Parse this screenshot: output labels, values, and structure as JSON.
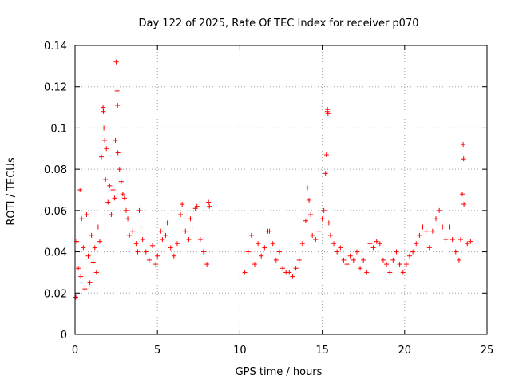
{
  "chart_data": {
    "type": "scatter",
    "title": "Day 122 of 2025, Rate Of TEC Index for receiver p070",
    "xlabel": "GPS time / hours",
    "ylabel": "ROTI / TECUs",
    "xlim": [
      0,
      25
    ],
    "ylim": [
      0,
      0.14
    ],
    "xticks": [
      0,
      5,
      10,
      15,
      20,
      25
    ],
    "xtick_labels": [
      "0",
      "5",
      "10",
      "15",
      "20",
      "25"
    ],
    "yticks": [
      0,
      0.02,
      0.04,
      0.06,
      0.08,
      0.1,
      0.12,
      0.14
    ],
    "ytick_labels": [
      "0",
      "0.02",
      "0.04",
      "0.06",
      "0.08",
      "0.1",
      "0.12",
      "0.14"
    ],
    "grid": true,
    "marker": "+",
    "color": "#ff0000",
    "data_gap_hours": [
      8.3,
      10.2
    ],
    "series": [
      {
        "name": "ROTI",
        "points": [
          [
            0.05,
            0.018
          ],
          [
            0.1,
            0.045
          ],
          [
            0.2,
            0.032
          ],
          [
            0.3,
            0.07
          ],
          [
            0.35,
            0.028
          ],
          [
            0.4,
            0.056
          ],
          [
            0.5,
            0.042
          ],
          [
            0.6,
            0.022
          ],
          [
            0.7,
            0.058
          ],
          [
            0.8,
            0.038
          ],
          [
            0.9,
            0.025
          ],
          [
            1.0,
            0.048
          ],
          [
            1.1,
            0.035
          ],
          [
            1.2,
            0.042
          ],
          [
            1.3,
            0.03
          ],
          [
            1.4,
            0.052
          ],
          [
            1.5,
            0.045
          ],
          [
            1.6,
            0.086
          ],
          [
            1.7,
            0.11
          ],
          [
            1.72,
            0.108
          ],
          [
            1.75,
            0.1
          ],
          [
            1.8,
            0.094
          ],
          [
            1.85,
            0.075
          ],
          [
            1.9,
            0.09
          ],
          [
            2.0,
            0.064
          ],
          [
            2.1,
            0.072
          ],
          [
            2.2,
            0.058
          ],
          [
            2.3,
            0.07
          ],
          [
            2.4,
            0.066
          ],
          [
            2.45,
            0.094
          ],
          [
            2.5,
            0.132
          ],
          [
            2.55,
            0.118
          ],
          [
            2.58,
            0.111
          ],
          [
            2.6,
            0.088
          ],
          [
            2.7,
            0.08
          ],
          [
            2.8,
            0.074
          ],
          [
            2.9,
            0.068
          ],
          [
            3.0,
            0.066
          ],
          [
            3.1,
            0.06
          ],
          [
            3.2,
            0.056
          ],
          [
            3.3,
            0.048
          ],
          [
            3.5,
            0.05
          ],
          [
            3.7,
            0.044
          ],
          [
            3.8,
            0.04
          ],
          [
            3.9,
            0.06
          ],
          [
            4.0,
            0.052
          ],
          [
            4.1,
            0.046
          ],
          [
            4.3,
            0.04
          ],
          [
            4.5,
            0.036
          ],
          [
            4.7,
            0.043
          ],
          [
            4.9,
            0.034
          ],
          [
            5.0,
            0.038
          ],
          [
            5.2,
            0.05
          ],
          [
            5.3,
            0.046
          ],
          [
            5.4,
            0.052
          ],
          [
            5.5,
            0.048
          ],
          [
            5.6,
            0.054
          ],
          [
            5.8,
            0.042
          ],
          [
            6.0,
            0.038
          ],
          [
            6.2,
            0.044
          ],
          [
            6.4,
            0.058
          ],
          [
            6.5,
            0.063
          ],
          [
            6.7,
            0.05
          ],
          [
            6.9,
            0.046
          ],
          [
            7.0,
            0.056
          ],
          [
            7.1,
            0.052
          ],
          [
            7.3,
            0.061
          ],
          [
            7.4,
            0.062
          ],
          [
            7.6,
            0.046
          ],
          [
            7.8,
            0.04
          ],
          [
            8.0,
            0.034
          ],
          [
            8.1,
            0.064
          ],
          [
            8.15,
            0.062
          ],
          [
            10.3,
            0.03
          ],
          [
            10.5,
            0.04
          ],
          [
            10.7,
            0.048
          ],
          [
            10.9,
            0.034
          ],
          [
            11.1,
            0.044
          ],
          [
            11.3,
            0.038
          ],
          [
            11.5,
            0.042
          ],
          [
            11.7,
            0.05
          ],
          [
            11.8,
            0.05
          ],
          [
            12.0,
            0.044
          ],
          [
            12.2,
            0.036
          ],
          [
            12.4,
            0.04
          ],
          [
            12.6,
            0.032
          ],
          [
            12.8,
            0.03
          ],
          [
            13.0,
            0.03
          ],
          [
            13.2,
            0.028
          ],
          [
            13.4,
            0.032
          ],
          [
            13.6,
            0.036
          ],
          [
            13.8,
            0.044
          ],
          [
            14.0,
            0.055
          ],
          [
            14.1,
            0.071
          ],
          [
            14.2,
            0.065
          ],
          [
            14.3,
            0.058
          ],
          [
            14.4,
            0.048
          ],
          [
            14.6,
            0.046
          ],
          [
            14.8,
            0.05
          ],
          [
            15.0,
            0.056
          ],
          [
            15.1,
            0.06
          ],
          [
            15.2,
            0.078
          ],
          [
            15.25,
            0.087
          ],
          [
            15.3,
            0.108
          ],
          [
            15.32,
            0.109
          ],
          [
            15.35,
            0.107
          ],
          [
            15.4,
            0.054
          ],
          [
            15.5,
            0.048
          ],
          [
            15.7,
            0.044
          ],
          [
            15.9,
            0.04
          ],
          [
            16.1,
            0.042
          ],
          [
            16.3,
            0.036
          ],
          [
            16.5,
            0.034
          ],
          [
            16.7,
            0.038
          ],
          [
            16.9,
            0.036
          ],
          [
            17.1,
            0.04
          ],
          [
            17.3,
            0.032
          ],
          [
            17.5,
            0.036
          ],
          [
            17.7,
            0.03
          ],
          [
            17.9,
            0.044
          ],
          [
            18.1,
            0.042
          ],
          [
            18.3,
            0.045
          ],
          [
            18.5,
            0.044
          ],
          [
            18.7,
            0.036
          ],
          [
            18.9,
            0.034
          ],
          [
            19.1,
            0.03
          ],
          [
            19.3,
            0.036
          ],
          [
            19.5,
            0.04
          ],
          [
            19.7,
            0.034
          ],
          [
            19.9,
            0.03
          ],
          [
            20.1,
            0.034
          ],
          [
            20.3,
            0.038
          ],
          [
            20.5,
            0.04
          ],
          [
            20.7,
            0.044
          ],
          [
            20.9,
            0.048
          ],
          [
            21.1,
            0.052
          ],
          [
            21.3,
            0.05
          ],
          [
            21.5,
            0.042
          ],
          [
            21.7,
            0.05
          ],
          [
            21.9,
            0.056
          ],
          [
            22.1,
            0.06
          ],
          [
            22.3,
            0.052
          ],
          [
            22.5,
            0.046
          ],
          [
            22.7,
            0.052
          ],
          [
            22.9,
            0.046
          ],
          [
            23.1,
            0.04
          ],
          [
            23.3,
            0.036
          ],
          [
            23.4,
            0.046
          ],
          [
            23.5,
            0.068
          ],
          [
            23.55,
            0.092
          ],
          [
            23.58,
            0.085
          ],
          [
            23.6,
            0.063
          ],
          [
            23.8,
            0.044
          ],
          [
            24.0,
            0.045
          ]
        ]
      }
    ]
  }
}
